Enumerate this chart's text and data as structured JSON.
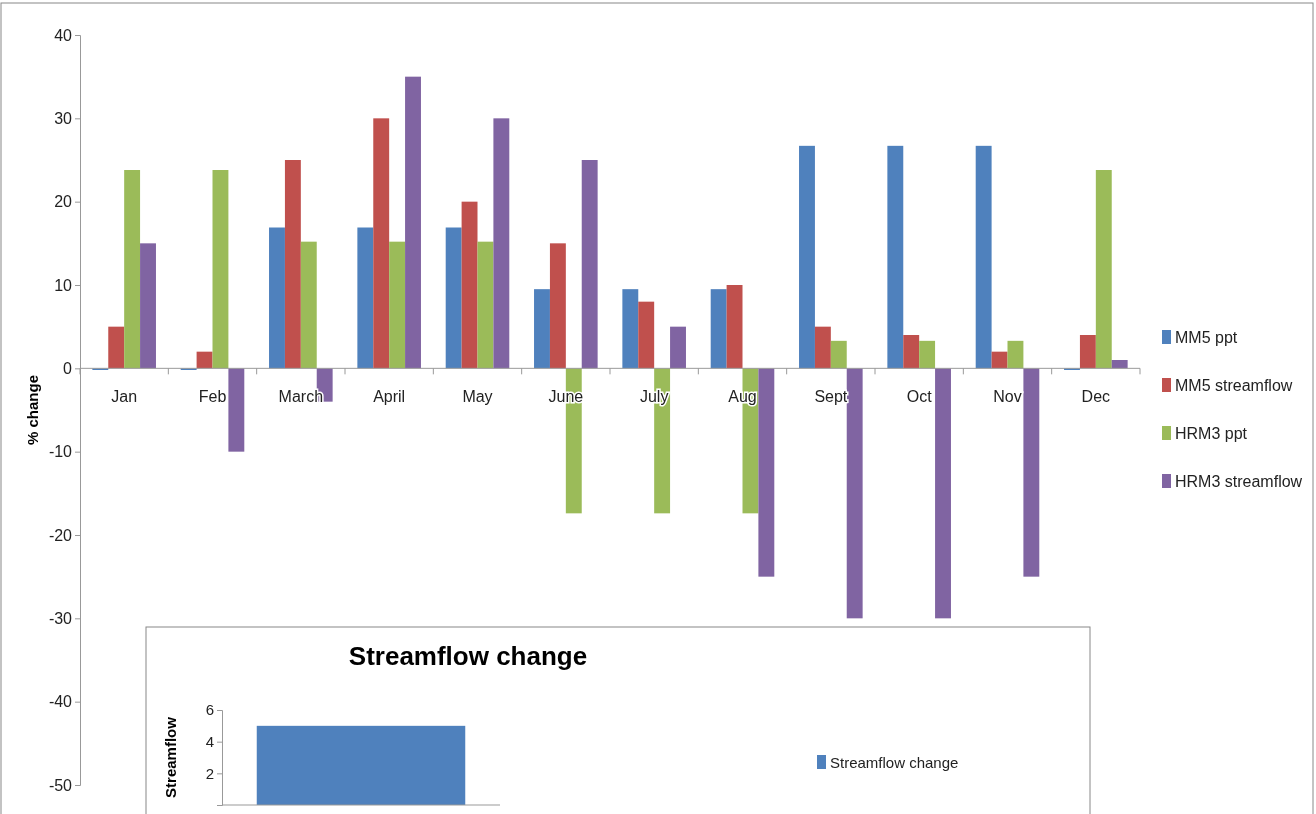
{
  "chart_data": [
    {
      "type": "bar",
      "ylabel": "% change",
      "categories": [
        "Jan",
        "Feb",
        "March",
        "April",
        "May",
        "June",
        "July",
        "Aug",
        "Sept",
        "Oct",
        "Nov",
        "Dec"
      ],
      "series": [
        {
          "name": "MM5 ppt",
          "color": "#4f81bd",
          "values": [
            -0.2,
            -0.2,
            16.9,
            16.9,
            16.9,
            9.5,
            9.5,
            9.5,
            26.7,
            26.7,
            26.7,
            -0.2
          ]
        },
        {
          "name": "MM5 streamflow",
          "color": "#c0504d",
          "values": [
            5,
            2,
            25,
            30,
            20,
            15,
            8,
            10,
            5,
            4,
            2,
            4
          ]
        },
        {
          "name": "HRM3 ppt",
          "color": "#9bbb59",
          "values": [
            23.8,
            23.8,
            15.2,
            15.2,
            15.2,
            -17.4,
            -17.4,
            -17.4,
            3.3,
            3.3,
            3.3,
            23.8
          ]
        },
        {
          "name": "HRM3 streamflow",
          "color": "#8064a2",
          "values": [
            15,
            -10,
            -4,
            35,
            30,
            25,
            5,
            -25,
            -30,
            -30,
            -25,
            1
          ]
        }
      ],
      "ylim": [
        -50,
        40
      ],
      "yticks": [
        -50,
        -40,
        -30,
        -20,
        -10,
        0,
        10,
        20,
        30,
        40
      ],
      "grid": false,
      "legend": "right"
    },
    {
      "type": "bar",
      "title": "Streamflow change",
      "ylabel": "Streamflow",
      "categories": [
        null
      ],
      "series": [
        {
          "name": "Streamflow change",
          "color": "#4f81bd",
          "values": [
            5
          ]
        }
      ],
      "ylim": [
        0,
        6
      ],
      "yticks": [
        2,
        4,
        6
      ],
      "grid": false,
      "legend": "right"
    }
  ]
}
